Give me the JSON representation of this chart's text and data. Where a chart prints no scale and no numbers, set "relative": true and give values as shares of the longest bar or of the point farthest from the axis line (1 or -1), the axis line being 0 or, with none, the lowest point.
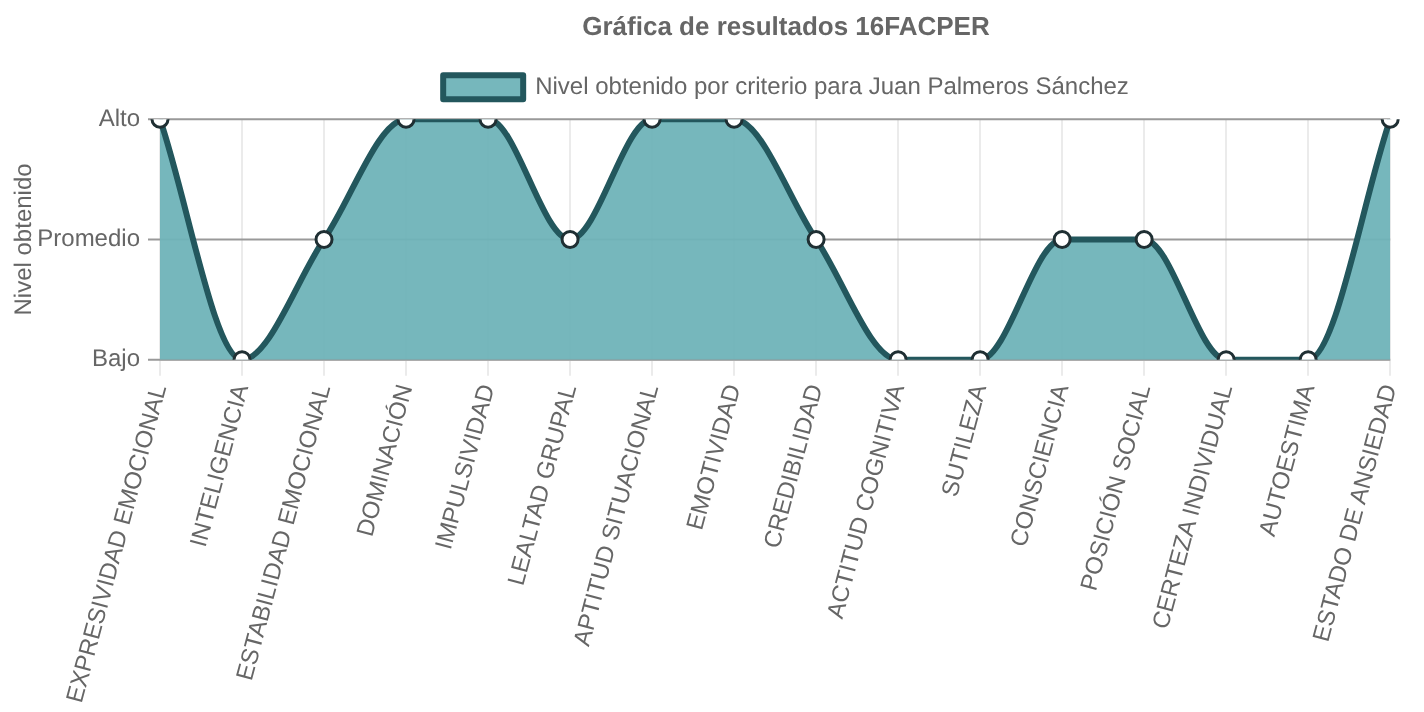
{
  "chart_data": {
    "type": "area",
    "title": "Gráfica de resultados 16FACPER",
    "ylabel": "Nivel obtenido",
    "relative": true,
    "categories": [
      "EXPRESIVIDAD EMOCIONAL",
      "INTELIGENCIA",
      "ESTABILIDAD EMOCIONAL",
      "DOMINACIÓN",
      "IMPULSIVIDAD",
      "LEALTAD GRUPAL",
      "APTITUD SITUACIONAL",
      "EMOTIVIDAD",
      "CREDIBILIDAD",
      "ACTITUD COGNITIVA",
      "SUTILEZA",
      "CONSCIENCIA",
      "POSICIÓN SOCIAL",
      "CERTEZA INDIVIDUAL",
      "AUTOESTIMA",
      "ESTADO DE ANSIEDAD"
    ],
    "series": [
      {
        "name": "Nivel obtenido por criterio para Juan Palmeros Sánchez",
        "color": "#23575d",
        "values": [
          1,
          0,
          0.5,
          1,
          1,
          0.5,
          1,
          1,
          0.5,
          0,
          0,
          0.5,
          0.5,
          0,
          0,
          1
        ]
      }
    ],
    "ref_lines": [
      {
        "axis": "y",
        "value": 0,
        "label": "Bajo",
        "color": "#999999"
      },
      {
        "axis": "y",
        "value": 0.5,
        "label": "Promedio",
        "color": "#999999"
      },
      {
        "axis": "y",
        "value": 1,
        "label": "Alto",
        "color": "#999999"
      }
    ],
    "grid": "x",
    "legend": "top",
    "marker": "circle"
  }
}
